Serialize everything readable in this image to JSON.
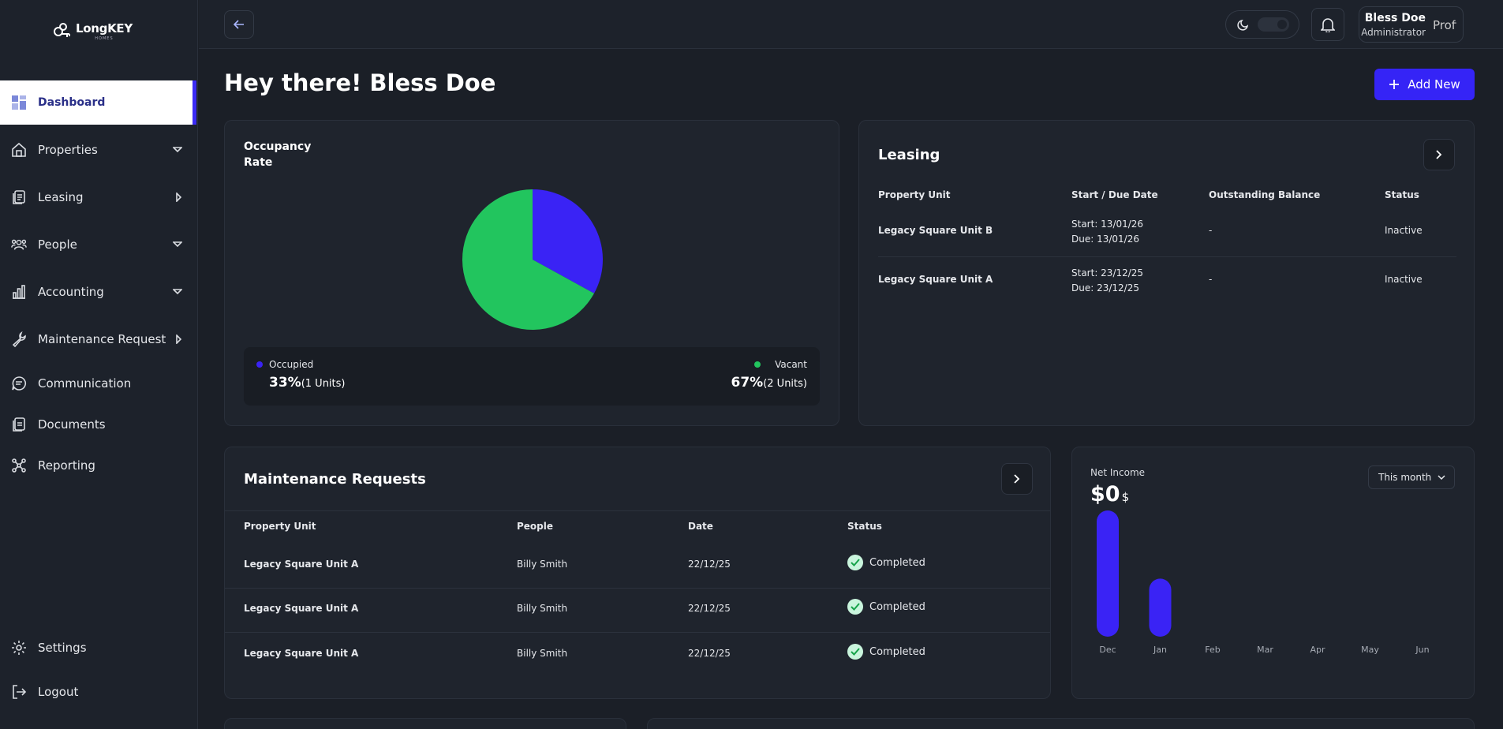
{
  "brand": {
    "name": "LongKEY",
    "sub": "HOMES"
  },
  "sidebar": {
    "items": [
      {
        "label": "Dashboard",
        "icon": "dashboard-icon",
        "active": true
      },
      {
        "label": "Properties",
        "icon": "building-icon",
        "chevron": "down"
      },
      {
        "label": "Leasing",
        "icon": "document-stack-icon",
        "chevron": "right"
      },
      {
        "label": "People",
        "icon": "people-icon",
        "chevron": "down"
      },
      {
        "label": "Accounting",
        "icon": "bar-chart-icon",
        "chevron": "down"
      },
      {
        "label": "Maintenance Request",
        "icon": "wrench-icon",
        "chevron": "right"
      },
      {
        "label": "Communication",
        "icon": "chat-icon"
      },
      {
        "label": "Documents",
        "icon": "documents-icon"
      },
      {
        "label": "Reporting",
        "icon": "network-icon"
      }
    ],
    "bottom": [
      {
        "label": "Settings",
        "icon": "gear-icon"
      },
      {
        "label": "Logout",
        "icon": "logout-icon"
      }
    ]
  },
  "topbar": {
    "user_name": "Bless Doe",
    "user_role": "Administrator",
    "avatar_alt": "Profi"
  },
  "header": {
    "greeting": "Hey there! Bless Doe",
    "add_label": "Add New"
  },
  "occupancy": {
    "title": "Occupancy Rate",
    "occupied_label": "Occupied",
    "occupied_pct": "33%",
    "occupied_units": "(1 Units)",
    "vacant_label": "Vacant",
    "vacant_pct": "67%",
    "vacant_units": "(2 Units)",
    "colors": {
      "occupied": "#3a23f5",
      "vacant": "#22c55e"
    }
  },
  "chart_data": [
    {
      "type": "pie",
      "title": "Occupancy Rate",
      "categories": [
        "Occupied",
        "Vacant"
      ],
      "values": [
        33,
        67
      ],
      "colors": [
        "#3a23f5",
        "#22c55e"
      ]
    },
    {
      "type": "bar",
      "title": "Net Income",
      "categories": [
        "Dec",
        "Jan",
        "Feb",
        "Mar",
        "Apr",
        "May",
        "Jun"
      ],
      "values": [
        100,
        46,
        0,
        0,
        0,
        0,
        0
      ],
      "color": "#3a23f5",
      "grid": false
    }
  ],
  "leasing": {
    "title": "Leasing",
    "headers": [
      "Property Unit",
      "Start / Due Date",
      "Outstanding Balance",
      "Status"
    ],
    "rows": [
      {
        "unit": "Legacy Square Unit B",
        "start": "Start: 13/01/26",
        "due": "Due: 13/01/26",
        "balance": "-",
        "status": "Inactive"
      },
      {
        "unit": "Legacy Square Unit A",
        "start": "Start: 23/12/25",
        "due": "Due: 23/12/25",
        "balance": "-",
        "status": "Inactive"
      }
    ]
  },
  "maintenance": {
    "title": "Maintenance Requests",
    "headers": [
      "Property Unit",
      "People",
      "Date",
      "Status"
    ],
    "rows": [
      {
        "unit": "Legacy Square Unit A",
        "people": "Billy Smith",
        "date": "22/12/25",
        "status": "Completed"
      },
      {
        "unit": "Legacy Square Unit A",
        "people": "Billy Smith",
        "date": "22/12/25",
        "status": "Completed"
      },
      {
        "unit": "Legacy Square Unit A",
        "people": "Billy Smith",
        "date": "22/12/25",
        "status": "Completed"
      }
    ]
  },
  "net_income": {
    "label": "Net Income",
    "value": "$0",
    "currency": "$",
    "period": "This month"
  }
}
